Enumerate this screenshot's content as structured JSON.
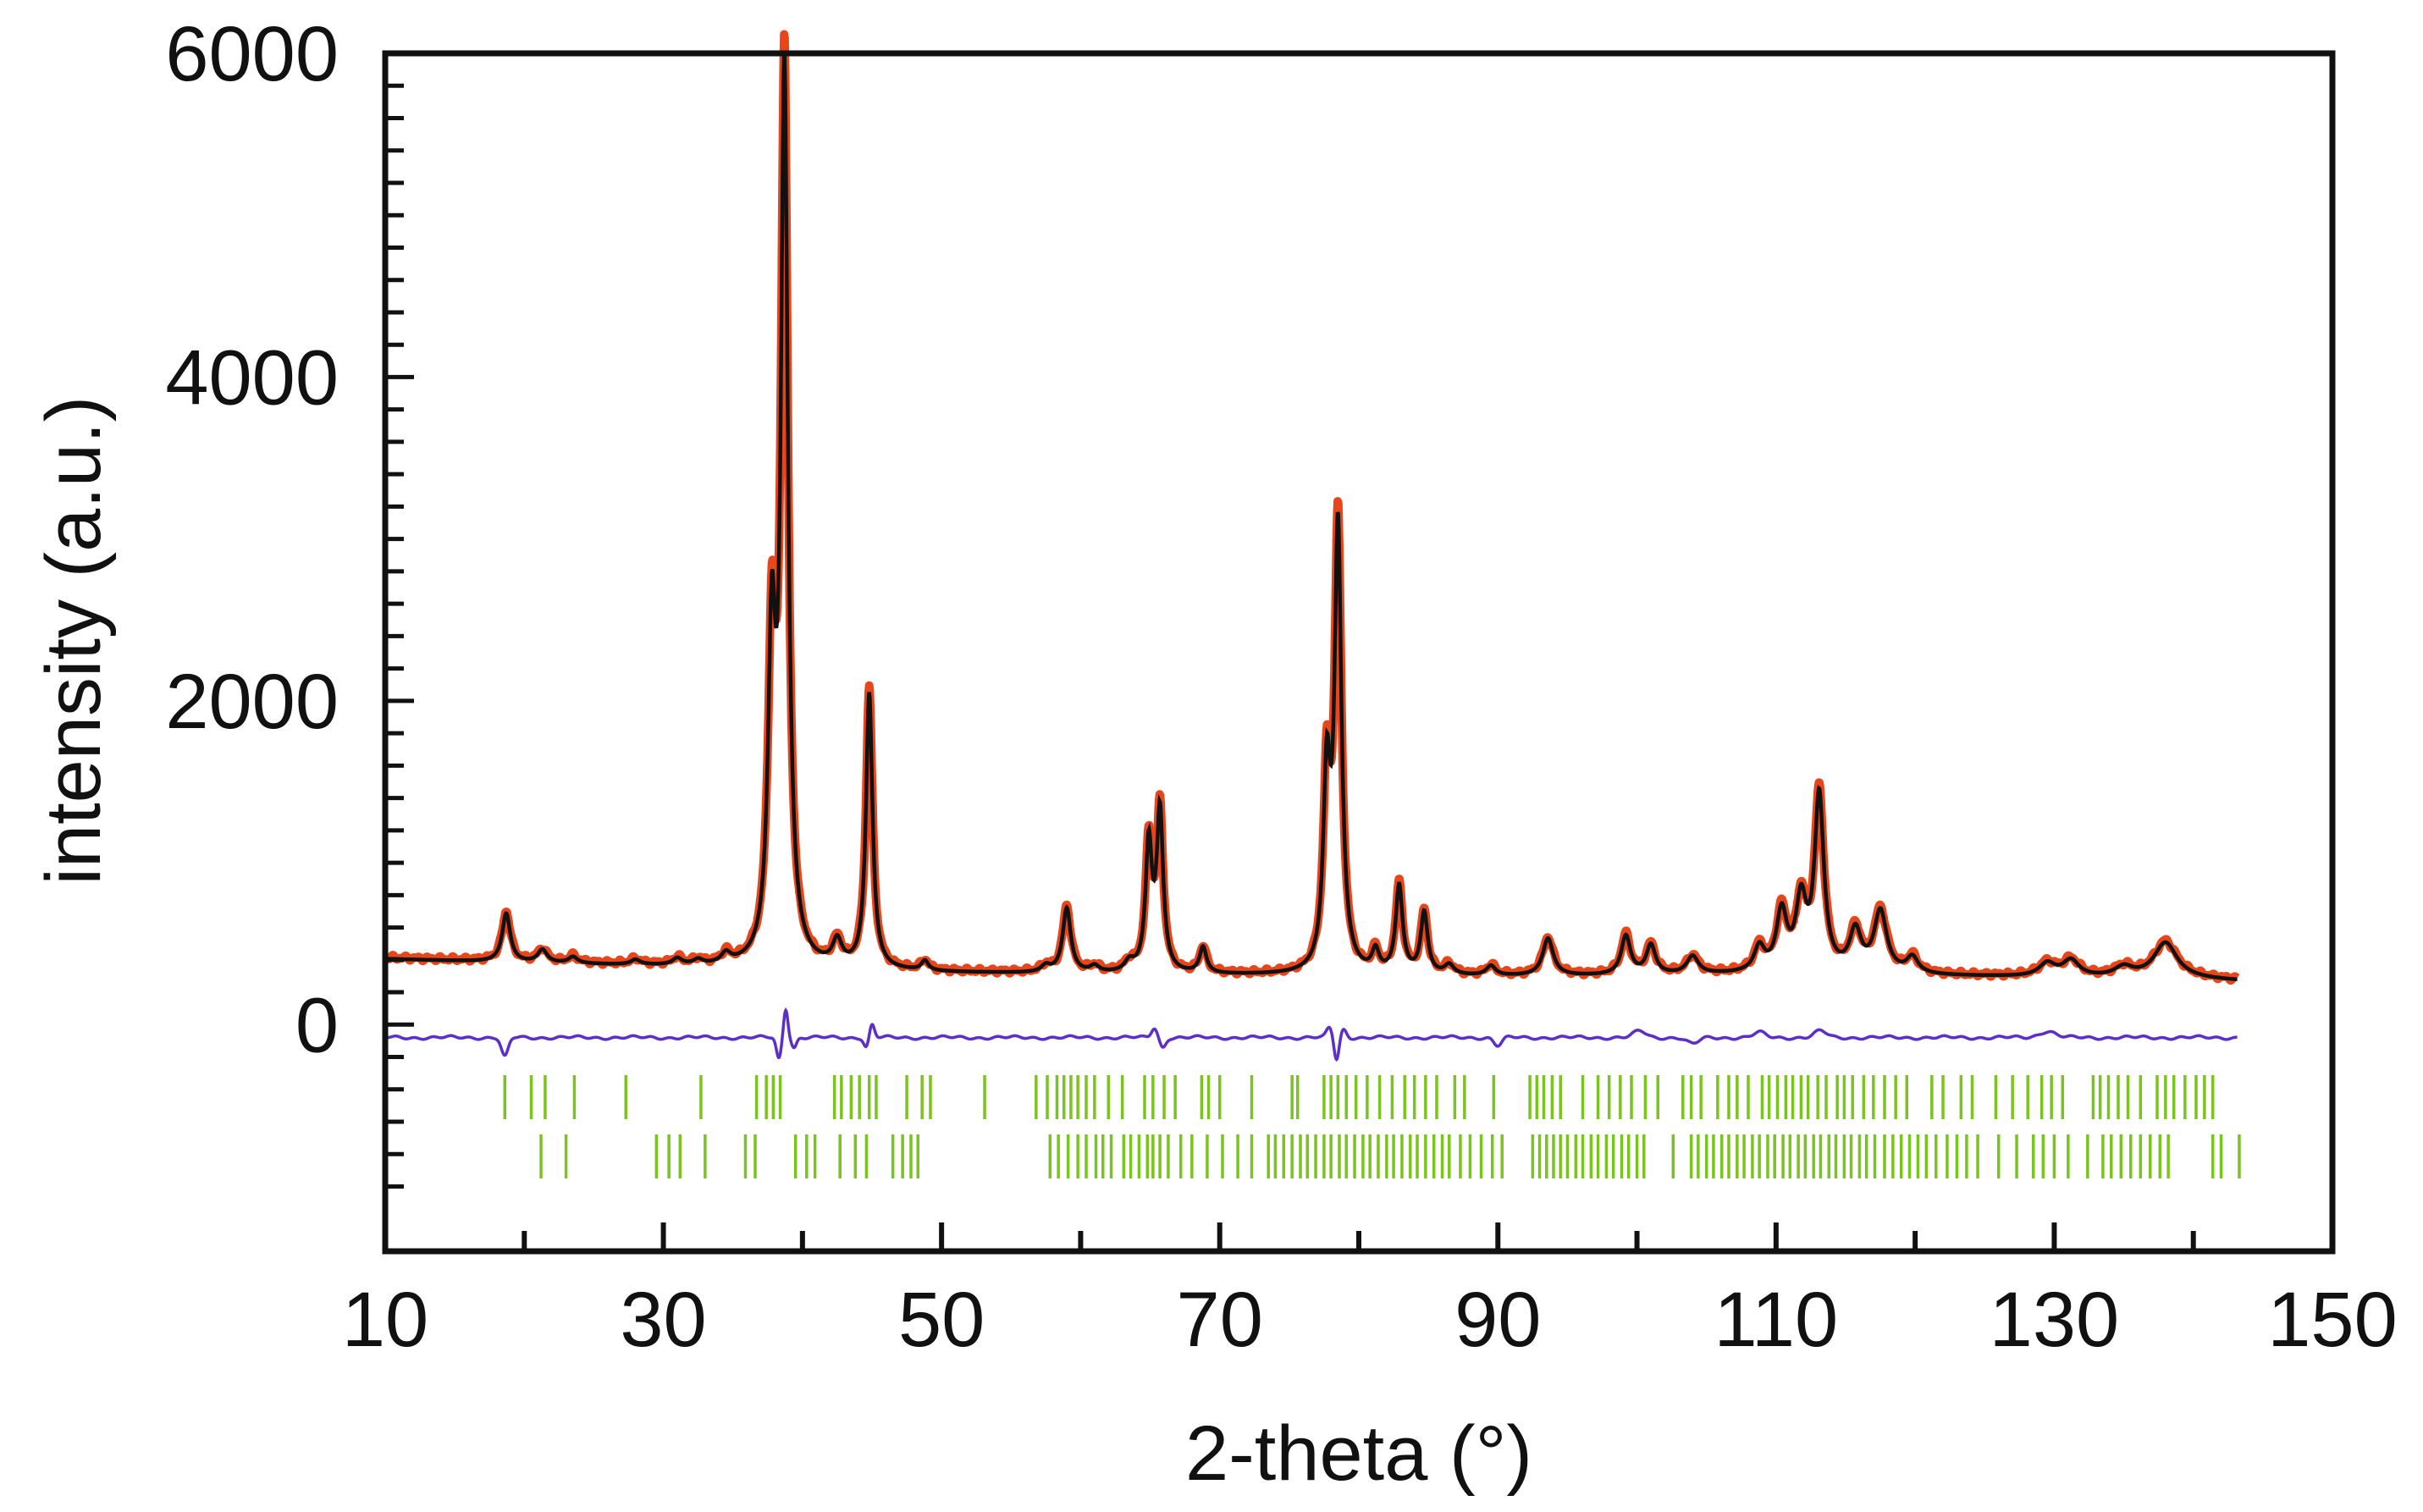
{
  "chart_data": {
    "type": "line",
    "xlabel": "2-theta (°)",
    "ylabel": "intensity (a.u.)",
    "xlim": [
      10,
      150
    ],
    "ylim": [
      -1400,
      6000
    ],
    "x_ticks": [
      10,
      30,
      50,
      70,
      90,
      110,
      130,
      150
    ],
    "y_ticks": [
      0,
      2000,
      4000,
      6000
    ],
    "x_tick_labels": [
      "10",
      "30",
      "50",
      "70",
      "90",
      "110",
      "130",
      "150"
    ],
    "y_tick_labels": [
      "0",
      "2000",
      "4000",
      "6000"
    ],
    "grid": false,
    "legend": "none",
    "colors": {
      "observed": "#e8461a",
      "calculated": "#111111",
      "difference": "#5b2fc8",
      "reflections": "#7ac41e",
      "axes": "#111111"
    },
    "observed_scatter_note": "",
    "pattern": {
      "background": [
        [
          10,
          405
        ],
        [
          20,
          380
        ],
        [
          30,
          360
        ],
        [
          40,
          340
        ],
        [
          50,
          320
        ],
        [
          60,
          310
        ],
        [
          70,
          305
        ],
        [
          80,
          300
        ],
        [
          90,
          295
        ],
        [
          100,
          300
        ],
        [
          110,
          310
        ],
        [
          120,
          300
        ],
        [
          130,
          290
        ],
        [
          140,
          280
        ],
        [
          143,
          270
        ]
      ],
      "peaks": [
        [
          18.7,
          300,
          0.35
        ],
        [
          21.3,
          80,
          0.4
        ],
        [
          23.5,
          40,
          0.4
        ],
        [
          28.0,
          30,
          0.4
        ],
        [
          31.0,
          40,
          0.4
        ],
        [
          32.5,
          30,
          0.4
        ],
        [
          34.5,
          60,
          0.4
        ],
        [
          37.8,
          1900,
          0.32
        ],
        [
          38.7,
          5450,
          0.3
        ],
        [
          42.5,
          150,
          0.4
        ],
        [
          44.8,
          1700,
          0.28
        ],
        [
          48.8,
          60,
          0.3
        ],
        [
          57.5,
          40,
          0.4
        ],
        [
          59.0,
          400,
          0.35
        ],
        [
          61.0,
          40,
          0.4
        ],
        [
          63.5,
          60,
          0.4
        ],
        [
          64.9,
          780,
          0.28
        ],
        [
          65.7,
          980,
          0.28
        ],
        [
          68.8,
          160,
          0.3
        ],
        [
          77.7,
          1150,
          0.3
        ],
        [
          78.5,
          2720,
          0.3
        ],
        [
          81.2,
          130,
          0.3
        ],
        [
          82.9,
          540,
          0.3
        ],
        [
          84.7,
          380,
          0.3
        ],
        [
          86.5,
          60,
          0.4
        ],
        [
          89.5,
          60,
          0.4
        ],
        [
          93.6,
          230,
          0.45
        ],
        [
          99.2,
          240,
          0.4
        ],
        [
          101.0,
          180,
          0.4
        ],
        [
          104.0,
          110,
          0.5
        ],
        [
          108.8,
          150,
          0.45
        ],
        [
          110.4,
          360,
          0.45
        ],
        [
          111.8,
          420,
          0.45
        ],
        [
          113.1,
          1080,
          0.4
        ],
        [
          115.7,
          250,
          0.5
        ],
        [
          117.5,
          380,
          0.55
        ],
        [
          119.8,
          100,
          0.5
        ],
        [
          129.5,
          80,
          0.7
        ],
        [
          131.2,
          100,
          0.7
        ],
        [
          135.0,
          60,
          0.8
        ],
        [
          138.0,
          220,
          1.0
        ]
      ],
      "x_start": 10,
      "x_end": 143.2
    },
    "difference": {
      "offset": -80,
      "features": [
        [
          18.6,
          -120,
          0.35
        ],
        [
          38.3,
          -130,
          0.25
        ],
        [
          38.8,
          180,
          0.22
        ],
        [
          39.4,
          -60,
          0.25
        ],
        [
          44.6,
          -60,
          0.25
        ],
        [
          45.0,
          80,
          0.25
        ],
        [
          65.3,
          60,
          0.3
        ],
        [
          65.9,
          -60,
          0.3
        ],
        [
          77.9,
          60,
          0.3
        ],
        [
          78.4,
          -140,
          0.25
        ],
        [
          78.9,
          50,
          0.3
        ],
        [
          90.0,
          -50,
          0.4
        ],
        [
          100.2,
          40,
          0.6
        ],
        [
          104.0,
          -40,
          0.6
        ],
        [
          108.8,
          30,
          0.6
        ],
        [
          113.2,
          40,
          0.6
        ],
        [
          129.5,
          40,
          0.8
        ]
      ]
    },
    "reflections_phase1": [
      18.6,
      20.5,
      21.5,
      23.6,
      27.3,
      32.7,
      36.7,
      37.4,
      37.9,
      38.4,
      42.3,
      42.8,
      43.5,
      44.1,
      44.8,
      45.3,
      47.5,
      48.6,
      49.2,
      53.1,
      56.8,
      57.6,
      58.3,
      58.8,
      59.3,
      59.8,
      60.4,
      61.0,
      62.0,
      63.0,
      64.6,
      65.2,
      66.0,
      66.8,
      68.7,
      69.2,
      70.0,
      72.3,
      75.2,
      75.6,
      77.5,
      78.0,
      78.5,
      79.1,
      79.8,
      80.6,
      81.5,
      82.4,
      83.3,
      84.0,
      84.8,
      85.6,
      86.9,
      87.6,
      89.7,
      92.3,
      92.8,
      93.3,
      93.9,
      94.5,
      96.1,
      97.2,
      98.0,
      98.8,
      99.6,
      100.6,
      101.5,
      103.3,
      103.9,
      104.6,
      105.8,
      106.6,
      107.2,
      108.0,
      109.0,
      109.5,
      110.1,
      110.7,
      111.2,
      111.8,
      112.3,
      113.0,
      113.6,
      114.4,
      114.9,
      115.5,
      116.3,
      117.0,
      117.8,
      118.6,
      119.4,
      121.2,
      122.0,
      123.3,
      124.1,
      125.8,
      127.0,
      128.1,
      129.1,
      129.8,
      130.6,
      132.8,
      133.3,
      133.9,
      134.6,
      135.3,
      136.2,
      137.4,
      138.0,
      138.6,
      139.4,
      140.2,
      140.8,
      141.4
    ],
    "reflections_phase2": [
      21.2,
      23.0,
      29.5,
      30.4,
      31.2,
      33.0,
      35.9,
      36.6,
      39.5,
      40.3,
      40.9,
      42.7,
      43.8,
      44.6,
      46.5,
      47.2,
      47.8,
      48.3,
      57.8,
      58.4,
      59.1,
      59.8,
      60.4,
      61.1,
      61.6,
      62.2,
      63.1,
      63.6,
      64.2,
      64.8,
      65.2,
      65.7,
      66.3,
      67.2,
      68.0,
      69.1,
      70.2,
      71.3,
      72.3,
      73.5,
      74.0,
      74.6,
      75.2,
      75.8,
      76.3,
      76.9,
      77.5,
      78.0,
      78.6,
      79.1,
      79.7,
      80.3,
      80.8,
      81.4,
      82.0,
      82.5,
      83.1,
      83.7,
      84.2,
      84.8,
      85.4,
      86.0,
      86.5,
      87.3,
      88.0,
      88.8,
      89.6,
      90.3,
      92.5,
      93.0,
      93.5,
      94.0,
      94.5,
      95.0,
      95.6,
      96.1,
      96.7,
      97.2,
      97.8,
      98.3,
      98.9,
      99.4,
      100.0,
      100.5,
      102.6,
      103.9,
      104.4,
      105.0,
      105.5,
      106.1,
      106.6,
      107.2,
      107.7,
      108.3,
      108.8,
      109.4,
      109.9,
      110.5,
      111.0,
      111.6,
      112.1,
      112.7,
      113.2,
      113.8,
      114.3,
      114.9,
      115.4,
      116.0,
      116.5,
      117.1,
      117.8,
      118.4,
      119.0,
      119.6,
      120.2,
      120.8,
      121.5,
      122.3,
      123.0,
      123.7,
      124.5,
      126.0,
      127.3,
      128.5,
      129.2,
      130.0,
      131.0,
      132.4,
      133.5,
      134.1,
      134.8,
      135.5,
      136.2,
      136.9,
      137.6,
      138.2,
      141.4,
      142.0,
      143.3
    ]
  }
}
